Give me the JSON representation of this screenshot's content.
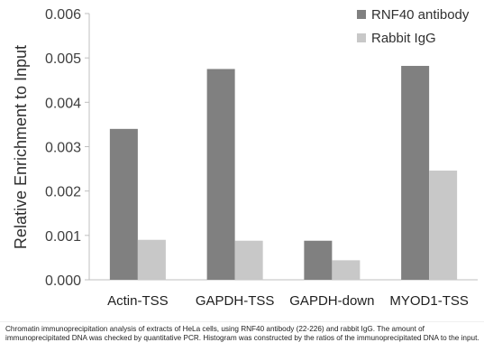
{
  "chart_data": {
    "type": "bar",
    "ylabel": "Relative Enrichment to Input",
    "ylim": [
      0,
      0.006
    ],
    "yticks": [
      "0.000",
      "0.001",
      "0.002",
      "0.003",
      "0.004",
      "0.005",
      "0.006"
    ],
    "categories": [
      "Actin-TSS",
      "GAPDH-TSS",
      "GAPDH-down",
      "MYOD1-TSS"
    ],
    "series": [
      {
        "name": "RNF40 antibody",
        "color": "#808080",
        "values": [
          0.0034,
          0.00475,
          0.00088,
          0.00482
        ]
      },
      {
        "name": "Rabbit IgG",
        "color": "#c8c8c8",
        "values": [
          0.0009,
          0.00088,
          0.00044,
          0.00246
        ]
      }
    ],
    "legend_position": "top-right",
    "grid": false
  },
  "caption": "Chromatin immunoprecipitation analysis of extracts of HeLa cells, using RNF40 antibody (22-226) and rabbit IgG. The amount of immunoprecipitated DNA was checked by quantitative PCR. Histogram was constructed by the ratios of the immunoprecipitated DNA to the input."
}
